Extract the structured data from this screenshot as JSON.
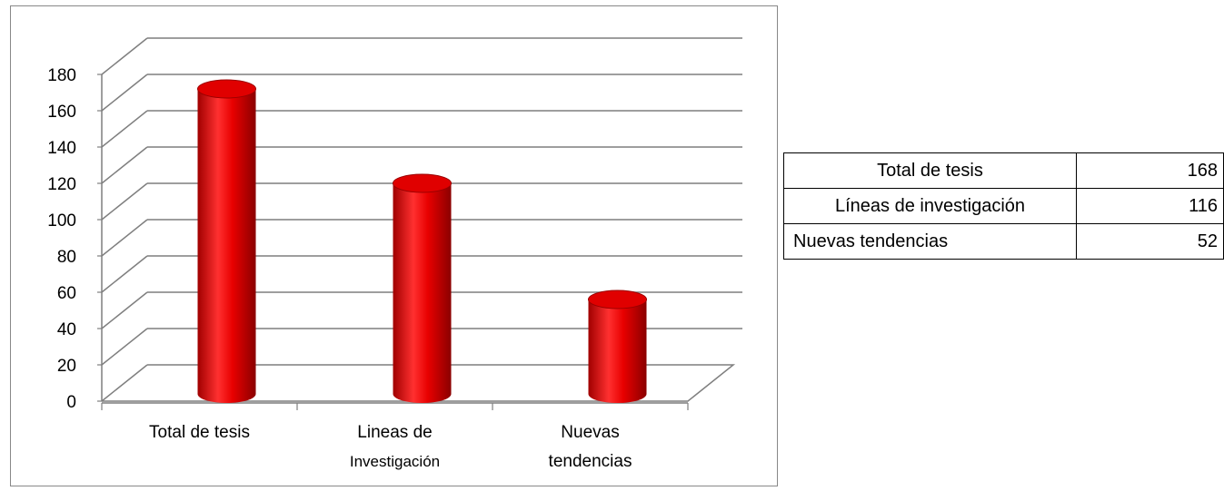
{
  "chart_data": {
    "type": "bar",
    "categories": [
      [
        "Total de tesis"
      ],
      [
        "Lineas de",
        "Investigación"
      ],
      [
        "Nuevas",
        "tendencias"
      ]
    ],
    "values": [
      168,
      116,
      52
    ],
    "ylim": [
      0,
      180
    ],
    "y_ticks": [
      "0",
      "20",
      "40",
      "60",
      "80",
      "100",
      "120",
      "140",
      "160",
      "180"
    ],
    "grid": true,
    "bar_style": "3d-cylinder",
    "colors": {
      "bar": "#e00000",
      "bar_dark": "#9a0000",
      "bar_light": "#ff4a4a",
      "grid": "#7f7f7f"
    }
  },
  "table": {
    "rows": [
      {
        "label": "Total de tesis",
        "value": "168"
      },
      {
        "label": "Líneas de investigación",
        "value": "116"
      },
      {
        "label": "Nuevas tendencias",
        "value": "52"
      }
    ]
  }
}
